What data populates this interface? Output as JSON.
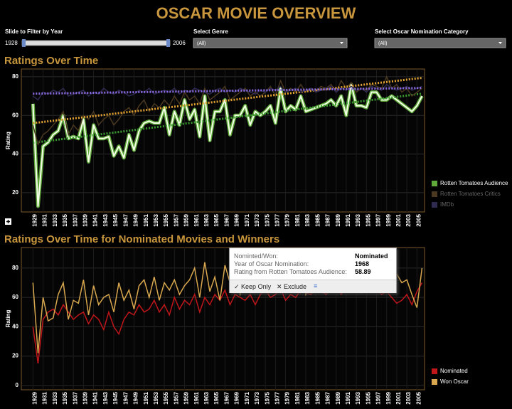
{
  "title": "OSCAR MOVIE OVERVIEW",
  "filters": {
    "year_label": "Slide to Filter by Year",
    "year_min": "1928",
    "year_max": "2006",
    "genre_label": "Select Genre",
    "genre_value": "(All)",
    "category_label": "Select Oscar Nomination Category",
    "category_value": "(All)"
  },
  "tooltip": {
    "row1_label": "Nominted/Won:",
    "row1_value": "Nominated",
    "row2_label": "Year of Oscar Nomination:",
    "row2_value": "1968",
    "row3_label": "Rating from Rotten Tomatoes Audience:",
    "row3_value": "58.89",
    "keep": "Keep Only",
    "exclude": "Exclude"
  },
  "chart_data": [
    {
      "type": "line",
      "title": "Ratings Over Time",
      "y_label": "Rating",
      "x": [
        1929,
        1930,
        1931,
        1932,
        1933,
        1934,
        1935,
        1936,
        1937,
        1938,
        1939,
        1940,
        1941,
        1942,
        1943,
        1944,
        1945,
        1946,
        1947,
        1948,
        1949,
        1950,
        1951,
        1952,
        1953,
        1954,
        1955,
        1956,
        1957,
        1958,
        1959,
        1960,
        1961,
        1962,
        1963,
        1964,
        1965,
        1966,
        1967,
        1968,
        1969,
        1970,
        1971,
        1972,
        1973,
        1974,
        1975,
        1976,
        1977,
        1978,
        1979,
        1980,
        1981,
        1982,
        1983,
        1984,
        1985,
        1986,
        1987,
        1988,
        1989,
        1990,
        1991,
        1992,
        1993,
        1994,
        1995,
        1996,
        1997,
        1998,
        1999,
        2000,
        2001,
        2002,
        2003,
        2004,
        2005,
        2006
      ],
      "xlim": [
        1926.7,
        2006.5
      ],
      "xticks": [
        1929,
        1931,
        1933,
        1935,
        1937,
        1939,
        1941,
        1943,
        1945,
        1947,
        1949,
        1951,
        1953,
        1955,
        1957,
        1959,
        1961,
        1963,
        1965,
        1967,
        1969,
        1971,
        1973,
        1975,
        1977,
        1979,
        1981,
        1983,
        1985,
        1987,
        1989,
        1991,
        1993,
        1995,
        1997,
        1999,
        2001,
        2003,
        2005
      ],
      "ylim": [
        10,
        84
      ],
      "yticks": [
        20,
        40,
        60,
        80
      ],
      "grid": true,
      "series": [
        {
          "name": "Rotten Tomatoes Audience",
          "color": "#5fa83a",
          "highlight": true,
          "trend": true,
          "trend_color": "#3a9a30",
          "values": [
            66,
            13,
            44,
            46,
            50,
            52,
            60,
            48,
            49,
            48,
            58,
            36,
            55,
            48,
            48,
            49,
            39,
            44,
            38,
            50,
            42,
            52,
            56,
            57,
            56,
            56,
            64,
            50,
            62,
            55,
            68,
            58,
            63,
            49,
            70,
            47,
            62,
            62,
            68,
            50,
            60,
            60,
            65,
            55,
            62,
            60,
            62,
            65,
            56,
            74,
            62,
            65,
            63,
            70,
            62,
            63,
            64,
            65,
            66,
            68,
            65,
            70,
            60,
            76,
            65,
            65,
            64,
            72,
            72,
            68,
            68,
            70,
            68,
            66,
            64,
            62,
            65,
            70
          ]
        },
        {
          "name": "Rotten Tomatoes Critics",
          "color": "#4a3820",
          "trend": true,
          "trend_color": "#e0a030",
          "values": [
            55,
            45,
            50,
            52,
            55,
            58,
            62,
            50,
            55,
            52,
            60,
            58,
            62,
            55,
            58,
            60,
            55,
            58,
            62,
            64,
            60,
            65,
            68,
            62,
            66,
            64,
            68,
            65,
            70,
            66,
            72,
            68,
            70,
            66,
            74,
            68,
            70,
            72,
            75,
            68,
            70,
            72,
            74,
            70,
            72,
            70,
            72,
            75,
            70,
            78,
            72,
            74,
            72,
            76,
            72,
            74,
            72,
            75,
            74,
            76,
            72,
            78,
            74,
            77,
            72,
            74,
            73,
            76,
            75,
            74,
            80,
            74,
            76,
            72,
            74,
            70,
            72,
            74
          ]
        },
        {
          "name": "IMDb",
          "color": "#2e2a50",
          "trend": true,
          "trend_color": "#8a6ae0",
          "values": [
            70,
            68,
            72,
            71,
            73,
            72,
            74,
            70,
            71,
            72,
            73,
            70,
            72,
            71,
            74,
            72,
            71,
            73,
            72,
            70,
            71,
            73,
            72,
            74,
            71,
            72,
            73,
            72,
            74,
            71,
            73,
            72,
            74,
            73,
            72,
            71,
            73,
            74,
            72,
            73,
            72,
            74,
            73,
            72,
            71,
            73,
            72,
            74,
            73,
            75,
            72,
            73,
            74,
            72,
            73,
            74,
            72,
            73,
            74,
            75,
            72,
            74,
            73,
            75,
            73,
            74,
            72,
            75,
            74,
            73,
            76,
            74,
            73,
            74,
            75,
            73,
            74,
            75
          ]
        }
      ]
    },
    {
      "type": "line",
      "title": "Ratings Over Time for Nominated Movies and Winners",
      "y_label": "Rating",
      "x": [
        1929,
        1930,
        1931,
        1932,
        1933,
        1934,
        1935,
        1936,
        1937,
        1938,
        1939,
        1940,
        1941,
        1942,
        1943,
        1944,
        1945,
        1946,
        1947,
        1948,
        1949,
        1950,
        1951,
        1952,
        1953,
        1954,
        1955,
        1956,
        1957,
        1958,
        1959,
        1960,
        1961,
        1962,
        1963,
        1964,
        1965,
        1966,
        1967,
        1968,
        1969,
        1970,
        1971,
        1972,
        1973,
        1974,
        1975,
        1976,
        1977,
        1978,
        1979,
        1980,
        1981,
        1982,
        1983,
        1984,
        1985,
        1986,
        1987,
        1988,
        1989,
        1990,
        1991,
        1992,
        1993,
        1994,
        1995,
        1996,
        1997,
        1998,
        1999,
        2000,
        2001,
        2002,
        2003,
        2004,
        2005,
        2006
      ],
      "xlim": [
        1926.7,
        2006.5
      ],
      "xticks": [
        1929,
        1931,
        1933,
        1935,
        1937,
        1939,
        1941,
        1943,
        1945,
        1947,
        1949,
        1951,
        1953,
        1955,
        1957,
        1959,
        1961,
        1963,
        1965,
        1967,
        1969,
        1971,
        1973,
        1975,
        1977,
        1979,
        1981,
        1983,
        1985,
        1987,
        1989,
        1991,
        1993,
        1995,
        1997,
        1999,
        2001,
        2003,
        2005
      ],
      "ylim": [
        -3,
        94
      ],
      "yticks": [
        0,
        20,
        40,
        60,
        80
      ],
      "grid": true,
      "series": [
        {
          "name": "Nominated",
          "color": "#c0161a",
          "values": [
            40,
            15,
            45,
            50,
            52,
            48,
            55,
            50,
            45,
            48,
            50,
            42,
            48,
            45,
            38,
            50,
            40,
            35,
            45,
            50,
            48,
            55,
            50,
            52,
            58,
            50,
            55,
            48,
            60,
            52,
            58,
            55,
            62,
            50,
            60,
            55,
            62,
            58,
            65,
            55,
            62,
            60,
            58,
            62,
            55,
            62,
            65,
            60,
            62,
            66,
            58,
            62,
            60,
            65,
            63,
            62,
            66,
            64,
            62,
            65,
            68,
            62,
            66,
            64,
            65,
            63,
            68,
            65,
            66,
            62,
            64,
            60,
            56,
            58,
            62,
            55,
            64,
            70
          ]
        },
        {
          "name": "Won Oscar",
          "color": "#d9a84e",
          "values": [
            70,
            22,
            60,
            44,
            46,
            62,
            70,
            45,
            58,
            56,
            72,
            48,
            68,
            55,
            60,
            62,
            50,
            70,
            58,
            65,
            52,
            68,
            72,
            60,
            74,
            58,
            70,
            65,
            72,
            62,
            68,
            72,
            80,
            60,
            84,
            64,
            74,
            58,
            82,
            70,
            76,
            62,
            72,
            66,
            76,
            70,
            72,
            75,
            68,
            80,
            70,
            74,
            72,
            78,
            62,
            70,
            74,
            68,
            72,
            76,
            66,
            78,
            70,
            80,
            68,
            76,
            72,
            74,
            78,
            70,
            82,
            74,
            76,
            70,
            72,
            62,
            53,
            80
          ]
        }
      ]
    }
  ]
}
